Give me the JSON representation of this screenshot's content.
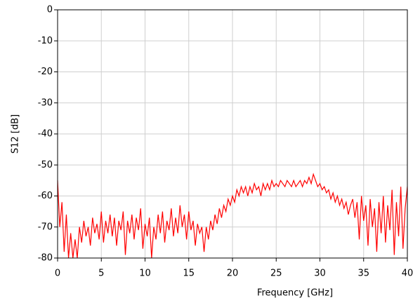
{
  "chart_data": {
    "type": "line",
    "x_label": "Frequency [GHz]",
    "y_label": "S12 [dB]",
    "xlim": [
      0,
      40
    ],
    "xticks": [
      0,
      5,
      10,
      15,
      20,
      25,
      30,
      35,
      40
    ],
    "ylim": [
      -80,
      0
    ],
    "yticks": [
      0,
      -10,
      -20,
      -30,
      -40,
      -50,
      -60,
      -70,
      -80
    ],
    "grid": true,
    "x": [
      0,
      0.25,
      0.5,
      0.75,
      1,
      1.25,
      1.5,
      1.75,
      2,
      2.25,
      2.5,
      2.75,
      3,
      3.25,
      3.5,
      3.75,
      4,
      4.25,
      4.5,
      4.75,
      5,
      5.25,
      5.5,
      5.75,
      6,
      6.25,
      6.5,
      6.75,
      7,
      7.25,
      7.5,
      7.75,
      8,
      8.25,
      8.5,
      8.75,
      9,
      9.25,
      9.5,
      9.75,
      10,
      10.25,
      10.5,
      10.75,
      11,
      11.25,
      11.5,
      11.75,
      12,
      12.25,
      12.5,
      12.75,
      13,
      13.25,
      13.5,
      13.75,
      14,
      14.25,
      14.5,
      14.75,
      15,
      15.25,
      15.5,
      15.75,
      16,
      16.25,
      16.5,
      16.75,
      17,
      17.25,
      17.5,
      17.75,
      18,
      18.25,
      18.5,
      18.75,
      19,
      19.25,
      19.5,
      19.75,
      20,
      20.25,
      20.5,
      20.75,
      21,
      21.25,
      21.5,
      21.75,
      22,
      22.25,
      22.5,
      22.75,
      23,
      23.25,
      23.5,
      23.75,
      24,
      24.25,
      24.5,
      24.75,
      25,
      25.25,
      25.5,
      25.75,
      26,
      26.25,
      26.5,
      26.75,
      27,
      27.25,
      27.5,
      27.75,
      28,
      28.25,
      28.5,
      28.75,
      29,
      29.25,
      29.5,
      29.75,
      30,
      30.25,
      30.5,
      30.75,
      31,
      31.25,
      31.5,
      31.75,
      32,
      32.25,
      32.5,
      32.75,
      33,
      33.25,
      33.5,
      33.75,
      34,
      34.25,
      34.5,
      34.75,
      35,
      35.25,
      35.5,
      35.75,
      36,
      36.25,
      36.5,
      36.75,
      37,
      37.25,
      37.5,
      37.75,
      38,
      38.25,
      38.5,
      38.75,
      39,
      39.25,
      39.5,
      39.75,
      40
    ],
    "series": [
      {
        "color": "#ff0000",
        "values": [
          -55,
          -70,
          -62,
          -78,
          -66,
          -80,
          -72,
          -80,
          -74,
          -80,
          -70,
          -75,
          -68,
          -73,
          -70,
          -76,
          -67,
          -72,
          -69,
          -74,
          -65,
          -75,
          -68,
          -72,
          -66,
          -73,
          -67,
          -76,
          -68,
          -71,
          -65,
          -79,
          -68,
          -72,
          -66,
          -74,
          -67,
          -71,
          -64,
          -77,
          -69,
          -73,
          -67,
          -80,
          -70,
          -74,
          -66,
          -72,
          -65,
          -75,
          -68,
          -71,
          -64,
          -73,
          -67,
          -72,
          -63,
          -70,
          -66,
          -74,
          -65,
          -71,
          -68,
          -76,
          -69,
          -72,
          -70,
          -78,
          -70,
          -74,
          -68,
          -71,
          -66,
          -69,
          -64,
          -67,
          -63,
          -65,
          -61,
          -63,
          -60,
          -62,
          -58,
          -60,
          -57,
          -59,
          -57,
          -60,
          -57,
          -59,
          -56,
          -58,
          -57,
          -60,
          -56,
          -58,
          -56,
          -58,
          -55,
          -57,
          -56,
          -57,
          -55,
          -56,
          -57,
          -55,
          -56,
          -57,
          -55,
          -57,
          -56,
          -55,
          -57,
          -55,
          -56,
          -54,
          -56,
          -53,
          -55,
          -57,
          -56,
          -58,
          -57,
          -59,
          -58,
          -61,
          -59,
          -62,
          -60,
          -63,
          -61,
          -64,
          -62,
          -66,
          -63,
          -61,
          -67,
          -62,
          -74,
          -60,
          -68,
          -63,
          -76,
          -61,
          -70,
          -64,
          -78,
          -62,
          -72,
          -60,
          -75,
          -63,
          -71,
          -58,
          -79,
          -62,
          -73,
          -57,
          -77,
          -64,
          -57
        ]
      }
    ]
  }
}
